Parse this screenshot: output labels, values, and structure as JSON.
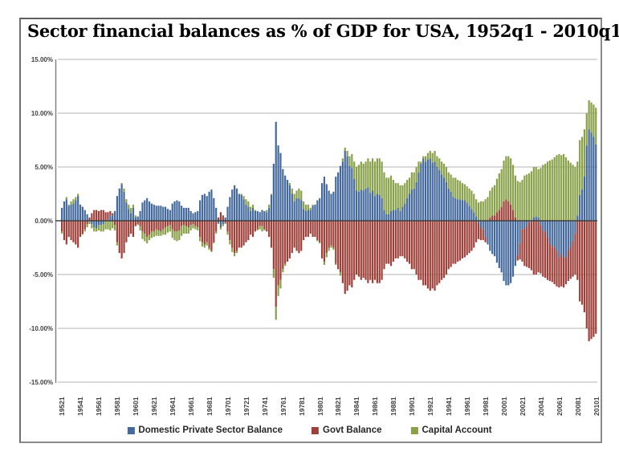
{
  "title": "Sector financial balances as % of GDP for USA, 1952q1 - 2010q1",
  "frame": {
    "border_color": "#8a8a8a",
    "background": "#ffffff"
  },
  "axis": {
    "grid_color": "#b3b3b3",
    "zero_line_color": "#404040",
    "axis_line_color": "#7d7d7d",
    "label_color": "#404040"
  },
  "chart_data": {
    "type": "bar",
    "stacked": true,
    "title": "Sector financial balances as % of GDP for USA, 1952q1 - 2010q1",
    "ylim": [
      -15,
      15
    ],
    "grid": true,
    "legend_position": "bottom",
    "y_tick_values": [
      15,
      10,
      5,
      0,
      -5,
      -10,
      -15
    ],
    "y_tick_labels": [
      "15.00%",
      "10.00%",
      "5.00%",
      "0.00%",
      "-5.00%",
      "-10.00%",
      "-15.00%"
    ],
    "x_label_every": 8,
    "x_tick_labels": [
      "19521",
      "19541",
      "19561",
      "19581",
      "19601",
      "19621",
      "19641",
      "19661",
      "19681",
      "19701",
      "19721",
      "19741",
      "19761",
      "19781",
      "19801",
      "19821",
      "19841",
      "19861",
      "19881",
      "19901",
      "19921",
      "19941",
      "19961",
      "19981",
      "20001",
      "20021",
      "20041",
      "20061",
      "20081",
      "20101"
    ],
    "series": [
      {
        "name": "Domestic Private Sector Balance",
        "color": "#44699D",
        "values": [
          1.2,
          1.8,
          2.0,
          1.4,
          1.5,
          1.6,
          1.9,
          2.3,
          1.5,
          1.3,
          1.0,
          0.6,
          0.0,
          -0.3,
          -0.6,
          -0.7,
          -0.4,
          -0.4,
          -0.3,
          0.0,
          0.1,
          0.5,
          0.5,
          0.9,
          2.3,
          3.0,
          3.4,
          2.7,
          1.7,
          1.1,
          0.7,
          1.2,
          0.3,
          0.4,
          0.9,
          1.7,
          1.9,
          2.1,
          1.8,
          1.6,
          1.5,
          1.4,
          1.4,
          1.4,
          1.3,
          1.3,
          1.1,
          1.0,
          1.6,
          1.8,
          1.9,
          1.8,
          1.4,
          1.2,
          1.2,
          1.2,
          0.9,
          0.7,
          0.8,
          0.9,
          1.9,
          2.4,
          2.5,
          2.3,
          2.7,
          2.9,
          2.1,
          1.2,
          -0.2,
          -0.6,
          -0.3,
          0.3,
          1.3,
          2.2,
          2.9,
          3.3,
          3.0,
          2.5,
          2.4,
          2.0,
          1.5,
          1.3,
          0.9,
          1.2,
          0.9,
          0.9,
          0.8,
          1.0,
          0.9,
          0.8,
          1.2,
          2.4,
          5.3,
          9.2,
          7.0,
          6.3,
          4.8,
          4.2,
          3.8,
          3.3,
          2.5,
          1.8,
          2.1,
          2.1,
          1.9,
          1.1,
          0.9,
          1.0,
          1.0,
          1.4,
          1.5,
          1.9,
          2.1,
          3.5,
          4.1,
          3.4,
          2.8,
          2.5,
          2.7,
          4.1,
          4.5,
          5.1,
          5.5,
          6.5,
          6.0,
          5.1,
          4.9,
          3.9,
          2.8,
          2.7,
          2.9,
          2.8,
          3.0,
          3.1,
          2.6,
          2.8,
          2.3,
          2.5,
          2.4,
          2.1,
          1.0,
          0.6,
          0.6,
          0.9,
          1.0,
          1.0,
          1.2,
          0.9,
          1.3,
          1.6,
          2.1,
          2.5,
          2.9,
          3.0,
          3.6,
          4.5,
          5.3,
          5.8,
          5.5,
          5.7,
          5.8,
          5.4,
          5.5,
          5.0,
          4.7,
          4.3,
          4.0,
          3.6,
          3.0,
          2.7,
          2.2,
          2.1,
          2.0,
          2.0,
          1.9,
          1.9,
          1.7,
          1.4,
          1.1,
          0.8,
          0.4,
          -0.2,
          -0.6,
          -0.8,
          -1.5,
          -2.2,
          -2.8,
          -3.1,
          -3.3,
          -3.9,
          -4.4,
          -4.8,
          -5.6,
          -6.0,
          -6.0,
          -5.8,
          -5.2,
          -4.2,
          -3.2,
          -2.1,
          -0.8,
          -0.7,
          -0.5,
          -0.1,
          -0.1,
          0.3,
          0.4,
          0.3,
          -0.4,
          -0.9,
          -1.0,
          -1.5,
          -2.1,
          -2.4,
          -2.4,
          -2.8,
          -3.4,
          -3.1,
          -3.4,
          -3.4,
          -2.8,
          -2.4,
          -1.9,
          -1.2,
          0.5,
          2.4,
          2.9,
          4.1,
          7.0,
          8.5,
          8.2,
          7.8,
          7.1
        ]
      },
      {
        "name": "Govt Balance",
        "color": "#9E403A",
        "values": [
          -1.0,
          -1.8,
          -2.2,
          -1.5,
          -1.8,
          -2.0,
          -2.2,
          -2.5,
          -1.5,
          -1.2,
          -0.8,
          -0.3,
          0.3,
          0.7,
          1.0,
          1.0,
          0.9,
          1.0,
          1.0,
          0.8,
          0.7,
          0.4,
          0.2,
          -0.4,
          -2.0,
          -3.0,
          -3.5,
          -3.0,
          -2.0,
          -1.5,
          -1.2,
          -1.5,
          -0.5,
          -0.3,
          -0.5,
          -1.0,
          -1.2,
          -1.5,
          -1.3,
          -1.0,
          -1.0,
          -0.8,
          -0.9,
          -1.0,
          -0.8,
          -0.6,
          -0.5,
          -0.4,
          -0.8,
          -1.0,
          -1.0,
          -0.9,
          -0.5,
          -0.4,
          -0.5,
          -0.6,
          -0.4,
          -0.3,
          -0.5,
          -0.6,
          -1.5,
          -2.0,
          -2.2,
          -2.0,
          -2.5,
          -2.8,
          -2.0,
          -1.0,
          0.3,
          0.8,
          0.5,
          -0.2,
          -1.0,
          -1.8,
          -2.5,
          -3.0,
          -2.8,
          -2.5,
          -2.5,
          -2.3,
          -2.0,
          -1.8,
          -1.3,
          -1.5,
          -1.0,
          -0.8,
          -0.5,
          -0.5,
          -0.8,
          -1.0,
          -1.5,
          -2.5,
          -4.5,
          -8.0,
          -6.0,
          -5.5,
          -4.5,
          -4.0,
          -3.8,
          -3.5,
          -3.0,
          -2.5,
          -2.8,
          -3.0,
          -2.8,
          -1.8,
          -1.5,
          -1.5,
          -1.2,
          -1.5,
          -1.5,
          -1.8,
          -2.0,
          -3.5,
          -3.8,
          -3.0,
          -2.5,
          -2.3,
          -2.5,
          -4.0,
          -4.5,
          -4.8,
          -5.8,
          -6.8,
          -6.5,
          -6.0,
          -6.2,
          -5.5,
          -5.0,
          -5.2,
          -5.5,
          -5.3,
          -5.5,
          -5.8,
          -5.5,
          -5.8,
          -5.5,
          -5.8,
          -5.8,
          -5.5,
          -4.5,
          -4.0,
          -4.0,
          -4.2,
          -3.8,
          -3.5,
          -3.5,
          -3.3,
          -3.3,
          -3.5,
          -3.8,
          -4.0,
          -4.5,
          -4.5,
          -5.0,
          -5.5,
          -5.5,
          -6.0,
          -6.0,
          -6.3,
          -6.5,
          -6.3,
          -6.5,
          -6.0,
          -5.8,
          -5.5,
          -5.3,
          -5.0,
          -4.5,
          -4.3,
          -4.0,
          -4.0,
          -3.8,
          -3.7,
          -3.5,
          -3.4,
          -3.2,
          -3.0,
          -2.8,
          -2.5,
          -2.0,
          -1.5,
          -1.2,
          -1.0,
          -0.5,
          0.0,
          0.3,
          0.5,
          0.5,
          0.8,
          1.0,
          1.3,
          1.8,
          2.0,
          1.8,
          1.5,
          1.0,
          0.3,
          -0.5,
          -1.5,
          -3.0,
          -3.5,
          -3.8,
          -4.3,
          -4.5,
          -5.0,
          -5.0,
          -4.8,
          -4.5,
          -4.3,
          -4.3,
          -4.0,
          -3.5,
          -3.3,
          -3.5,
          -3.3,
          -2.8,
          -3.0,
          -2.8,
          -2.5,
          -2.8,
          -3.0,
          -3.3,
          -3.8,
          -5.5,
          -7.5,
          -7.8,
          -8.5,
          -10.0,
          -11.2,
          -11.0,
          -10.8,
          -10.5
        ]
      },
      {
        "name": "Capital Account",
        "color": "#89A149",
        "values": [
          -0.2,
          0.0,
          0.2,
          0.1,
          0.3,
          0.4,
          0.3,
          0.2,
          0.0,
          -0.1,
          -0.2,
          -0.3,
          -0.3,
          -0.4,
          -0.4,
          -0.3,
          -0.5,
          -0.6,
          -0.7,
          -0.8,
          -0.8,
          -0.9,
          -0.7,
          -0.5,
          -0.3,
          0.0,
          0.1,
          0.3,
          0.3,
          0.4,
          0.5,
          0.3,
          0.2,
          -0.1,
          -0.4,
          -0.7,
          -0.7,
          -0.6,
          -0.5,
          -0.6,
          -0.5,
          -0.6,
          -0.5,
          -0.4,
          -0.5,
          -0.7,
          -0.6,
          -0.6,
          -0.8,
          -0.8,
          -0.9,
          -0.9,
          -0.9,
          -0.8,
          -0.7,
          -0.6,
          -0.5,
          -0.4,
          -0.3,
          -0.3,
          -0.4,
          -0.4,
          -0.3,
          -0.3,
          -0.2,
          -0.1,
          -0.1,
          -0.2,
          -0.1,
          -0.2,
          -0.2,
          -0.1,
          -0.3,
          -0.4,
          -0.4,
          -0.3,
          -0.2,
          0.0,
          0.1,
          0.3,
          0.5,
          0.5,
          0.4,
          0.3,
          0.1,
          -0.1,
          -0.3,
          -0.5,
          -0.1,
          0.2,
          0.3,
          0.1,
          -0.8,
          -1.2,
          -1.0,
          -0.8,
          -0.3,
          -0.2,
          0.0,
          0.2,
          0.5,
          0.7,
          0.7,
          0.9,
          0.9,
          0.7,
          0.6,
          0.5,
          0.2,
          0.1,
          0.0,
          -0.1,
          -0.1,
          0.0,
          -0.3,
          -0.4,
          -0.3,
          -0.2,
          -0.2,
          -0.1,
          0.0,
          -0.3,
          0.3,
          0.3,
          0.5,
          0.9,
          1.3,
          1.6,
          2.2,
          2.5,
          2.6,
          2.5,
          2.5,
          2.7,
          2.9,
          3.0,
          3.2,
          3.3,
          3.4,
          3.4,
          3.5,
          3.4,
          3.4,
          3.3,
          2.8,
          2.5,
          2.3,
          2.4,
          2.0,
          1.9,
          1.7,
          1.5,
          1.6,
          1.5,
          1.4,
          1.0,
          0.2,
          0.2,
          0.5,
          0.6,
          0.7,
          0.9,
          1.0,
          1.0,
          1.1,
          1.2,
          1.3,
          1.4,
          1.5,
          1.6,
          1.8,
          1.9,
          1.8,
          1.7,
          1.6,
          1.5,
          1.5,
          1.6,
          1.7,
          1.7,
          1.6,
          1.7,
          1.8,
          1.8,
          2.0,
          2.2,
          2.5,
          2.6,
          2.8,
          3.1,
          3.4,
          3.5,
          3.8,
          4.0,
          4.2,
          4.3,
          4.2,
          3.9,
          3.7,
          3.6,
          3.8,
          4.2,
          4.3,
          4.4,
          4.6,
          4.7,
          4.6,
          4.5,
          4.9,
          5.2,
          5.3,
          5.5,
          5.6,
          5.7,
          5.9,
          6.1,
          6.2,
          6.1,
          6.2,
          5.9,
          5.6,
          5.4,
          5.2,
          5.0,
          5.0,
          5.1,
          4.9,
          4.4,
          3.0,
          2.7,
          2.8,
          3.0,
          3.4
        ]
      }
    ]
  }
}
